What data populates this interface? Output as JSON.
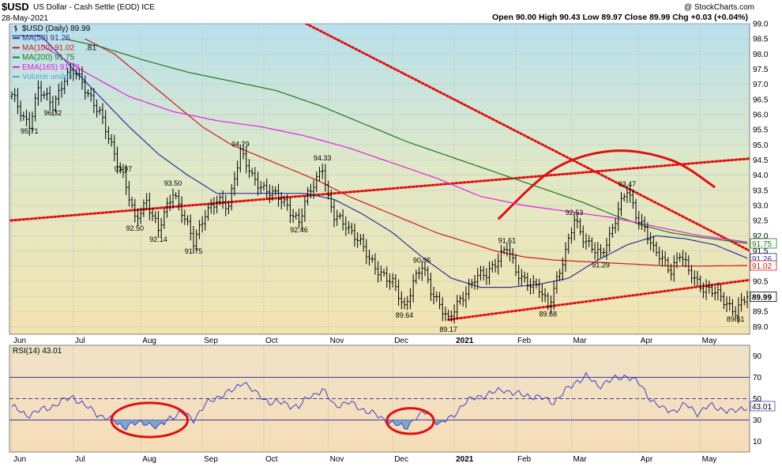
{
  "header": {
    "ticker": "$USD",
    "name": "US Dollar - Cash Settle (EOD) ICE",
    "date": "28-May-2021",
    "copyright": "@ StockCharts.com",
    "ohlc": "Open 90.00  High 90.43  Low 89.97  Close 89.99  Chg +0.03 (+0.04%)"
  },
  "legend": [
    {
      "text": "$USD (Daily) 89.99",
      "color": "#000000"
    },
    {
      "text": "MA(50) 91.26",
      "color": "#2b2f9e"
    },
    {
      "text": "MA(100) 91.02",
      "color": "#d01818"
    },
    {
      "text": "MA(200) 91.75",
      "color": "#1a7a1a"
    },
    {
      "text": "EMA(165) 91.79",
      "color": "#e020e0"
    },
    {
      "text": "Volume undefi",
      "color": "#5aa0d0"
    }
  ],
  "legend_extra": ".81",
  "colors": {
    "price": "#000000",
    "ma50": "#2b2f9e",
    "ma100": "#d01818",
    "ma200": "#1a7a1a",
    "ema165": "#e020e0",
    "trend": "#e01010",
    "rsi": "#4040c8",
    "rsi_fill": "#7aa8c8"
  },
  "chart_data": [
    {
      "type": "line",
      "title": "$USD (Daily)",
      "ylim": [
        88.75,
        99.0
      ],
      "yticks": [
        89.0,
        89.5,
        90.0,
        90.5,
        91.0,
        91.5,
        92.0,
        92.5,
        93.0,
        93.5,
        94.0,
        94.5,
        95.0,
        95.5,
        96.0,
        96.5,
        97.0,
        97.5,
        98.0,
        98.5,
        99.0
      ],
      "ytick_labels": [
        "89.0",
        "89.5",
        "90.0",
        "90.5",
        "91.0",
        "91.5",
        "92.0",
        "92.5",
        "93.0",
        "93.5",
        "94.0",
        "94.5",
        "95.0",
        "95.5",
        "96.0",
        "96.5",
        "97.0",
        "97.5",
        "98.0",
        "98.5",
        "99.0"
      ],
      "x_labels": [
        "Jun",
        "Jul",
        "Aug",
        "Sep",
        "Oct",
        "Nov",
        "Dec",
        "2021",
        "Feb",
        "Mar",
        "Apr",
        "May"
      ],
      "x_label_pos": [
        0,
        21,
        44,
        65,
        86,
        108,
        130,
        151,
        172,
        191,
        214,
        235
      ],
      "n_days": 252,
      "last_value_labels": [
        {
          "text": "91.75",
          "value": 91.75,
          "color": "#1a7a1a"
        },
        {
          "text": "91.26",
          "value": 91.26,
          "color": "#2b2f9e"
        },
        {
          "text": "91.02",
          "value": 91.02,
          "color": "#d01818"
        },
        {
          "text": "89.99",
          "value": 89.99,
          "color": "#000000"
        }
      ],
      "anchors": [
        [
          0,
          96.6
        ],
        [
          4,
          95.9
        ],
        [
          6,
          95.71
        ],
        [
          9,
          96.8
        ],
        [
          14,
          96.32
        ],
        [
          18,
          97.2
        ],
        [
          21,
          97.4
        ],
        [
          24,
          97.1
        ],
        [
          30,
          96.0
        ],
        [
          34,
          95.0
        ],
        [
          38,
          93.97
        ],
        [
          42,
          92.5
        ],
        [
          46,
          93.2
        ],
        [
          50,
          92.14
        ],
        [
          55,
          93.5
        ],
        [
          58,
          92.8
        ],
        [
          62,
          91.75
        ],
        [
          66,
          92.8
        ],
        [
          70,
          93.1
        ],
        [
          74,
          93.0
        ],
        [
          76,
          94.0
        ],
        [
          78,
          94.79
        ],
        [
          82,
          93.9
        ],
        [
          86,
          93.6
        ],
        [
          90,
          93.3
        ],
        [
          94,
          93.0
        ],
        [
          98,
          92.46
        ],
        [
          101,
          93.3
        ],
        [
          104,
          93.9
        ],
        [
          106,
          94.33
        ],
        [
          108,
          93.2
        ],
        [
          110,
          92.6
        ],
        [
          114,
          92.4
        ],
        [
          118,
          91.9
        ],
        [
          122,
          91.2
        ],
        [
          126,
          90.8
        ],
        [
          130,
          90.4
        ],
        [
          134,
          89.64
        ],
        [
          137,
          90.5
        ],
        [
          140,
          90.95
        ],
        [
          143,
          90.2
        ],
        [
          146,
          89.8
        ],
        [
          149,
          89.17
        ],
        [
          152,
          89.7
        ],
        [
          155,
          90.2
        ],
        [
          158,
          90.6
        ],
        [
          162,
          90.7
        ],
        [
          166,
          91.3
        ],
        [
          169,
          91.61
        ],
        [
          172,
          90.8
        ],
        [
          176,
          90.5
        ],
        [
          180,
          90.2
        ],
        [
          183,
          89.68
        ],
        [
          186,
          90.6
        ],
        [
          189,
          91.4
        ],
        [
          192,
          92.53
        ],
        [
          195,
          92.0
        ],
        [
          198,
          91.6
        ],
        [
          201,
          91.29
        ],
        [
          204,
          92.0
        ],
        [
          207,
          92.9
        ],
        [
          210,
          93.47
        ],
        [
          213,
          92.7
        ],
        [
          216,
          92.3
        ],
        [
          219,
          91.5
        ],
        [
          222,
          91.2
        ],
        [
          225,
          90.9
        ],
        [
          228,
          91.4
        ],
        [
          231,
          90.8
        ],
        [
          234,
          90.5
        ],
        [
          236,
          90.3
        ],
        [
          240,
          90.1
        ],
        [
          244,
          89.8
        ],
        [
          247,
          89.51
        ],
        [
          250,
          89.85
        ],
        [
          251,
          89.99
        ]
      ],
      "annotations": [
        {
          "text": "95.71",
          "day": 6,
          "value": 95.71,
          "pos": "below"
        },
        {
          "text": "96.32",
          "day": 14,
          "value": 96.32,
          "pos": "below"
        },
        {
          "text": "93.97",
          "day": 38,
          "value": 93.97,
          "pos": "above"
        },
        {
          "text": "92.50",
          "day": 42,
          "value": 92.5,
          "pos": "below"
        },
        {
          "text": "92.14",
          "day": 50,
          "value": 92.14,
          "pos": "below"
        },
        {
          "text": "93.50",
          "day": 55,
          "value": 93.5,
          "pos": "above"
        },
        {
          "text": "91.75",
          "day": 62,
          "value": 91.75,
          "pos": "below"
        },
        {
          "text": "94.79",
          "day": 78,
          "value": 94.79,
          "pos": "above"
        },
        {
          "text": "92.46",
          "day": 98,
          "value": 92.46,
          "pos": "below"
        },
        {
          "text": "94.33",
          "day": 106,
          "value": 94.33,
          "pos": "above"
        },
        {
          "text": "90.95",
          "day": 140,
          "value": 90.95,
          "pos": "above"
        },
        {
          "text": "89.64",
          "day": 134,
          "value": 89.64,
          "pos": "below"
        },
        {
          "text": "89.17",
          "day": 149,
          "value": 89.17,
          "pos": "below"
        },
        {
          "text": "91.61",
          "day": 169,
          "value": 91.61,
          "pos": "above"
        },
        {
          "text": "89.68",
          "day": 183,
          "value": 89.68,
          "pos": "below"
        },
        {
          "text": "92.53",
          "day": 192,
          "value": 92.53,
          "pos": "above"
        },
        {
          "text": "91.29",
          "day": 201,
          "value": 91.29,
          "pos": "below"
        },
        {
          "text": "93.47",
          "day": 210,
          "value": 93.47,
          "pos": "above"
        },
        {
          "text": "89.51",
          "day": 247,
          "value": 89.51,
          "pos": "below"
        }
      ],
      "moving_averages": [
        {
          "name": "MA(50)",
          "color": "#2b2f9e",
          "points": [
            [
              0,
              98.6
            ],
            [
              10,
              98.6
            ],
            [
              20,
              97.6
            ],
            [
              30,
              96.6
            ],
            [
              40,
              95.6
            ],
            [
              50,
              94.7
            ],
            [
              60,
              94.0
            ],
            [
              70,
              93.4
            ],
            [
              80,
              93.4
            ],
            [
              90,
              93.4
            ],
            [
              100,
              93.4
            ],
            [
              110,
              93.2
            ],
            [
              120,
              92.7
            ],
            [
              130,
              92.1
            ],
            [
              140,
              91.3
            ],
            [
              150,
              90.6
            ],
            [
              160,
              90.3
            ],
            [
              170,
              90.3
            ],
            [
              180,
              90.4
            ],
            [
              190,
              90.6
            ],
            [
              200,
              91.2
            ],
            [
              210,
              91.7
            ],
            [
              220,
              92.0
            ],
            [
              230,
              91.9
            ],
            [
              240,
              91.7
            ],
            [
              251,
              91.26
            ]
          ]
        },
        {
          "name": "MA(100)",
          "color": "#d01818",
          "points": [
            [
              25,
              98.5
            ],
            [
              35,
              98.0
            ],
            [
              45,
              97.2
            ],
            [
              55,
              96.4
            ],
            [
              65,
              95.6
            ],
            [
              75,
              95.0
            ],
            [
              85,
              94.6
            ],
            [
              95,
              94.2
            ],
            [
              105,
              93.8
            ],
            [
              115,
              93.3
            ],
            [
              125,
              92.9
            ],
            [
              135,
              92.5
            ],
            [
              145,
              92.1
            ],
            [
              155,
              91.8
            ],
            [
              165,
              91.5
            ],
            [
              175,
              91.3
            ],
            [
              185,
              91.2
            ],
            [
              195,
              91.15
            ],
            [
              205,
              91.1
            ],
            [
              215,
              91.05
            ],
            [
              225,
              91.0
            ],
            [
              235,
              91.0
            ],
            [
              251,
              91.02
            ]
          ]
        },
        {
          "name": "MA(200)",
          "color": "#1a7a1a",
          "points": [
            [
              18,
              98.5
            ],
            [
              30,
              98.25
            ],
            [
              45,
              97.8
            ],
            [
              60,
              97.4
            ],
            [
              75,
              97.1
            ],
            [
              90,
              96.8
            ],
            [
              105,
              96.3
            ],
            [
              120,
              95.7
            ],
            [
              135,
              95.1
            ],
            [
              150,
              94.6
            ],
            [
              165,
              94.1
            ],
            [
              180,
              93.6
            ],
            [
              195,
              93.1
            ],
            [
              205,
              92.7
            ],
            [
              215,
              92.35
            ],
            [
              225,
              92.1
            ],
            [
              235,
              91.95
            ],
            [
              251,
              91.75
            ]
          ]
        },
        {
          "name": "EMA(165)",
          "color": "#e020e0",
          "points": [
            [
              10,
              98.3
            ],
            [
              25,
              97.4
            ],
            [
              40,
              96.6
            ],
            [
              55,
              96.1
            ],
            [
              70,
              95.8
            ],
            [
              85,
              95.6
            ],
            [
              100,
              95.3
            ],
            [
              115,
              94.9
            ],
            [
              130,
              94.4
            ],
            [
              145,
              93.9
            ],
            [
              160,
              93.3
            ],
            [
              175,
              93.0
            ],
            [
              190,
              92.8
            ],
            [
              205,
              92.6
            ],
            [
              215,
              92.4
            ],
            [
              225,
              92.2
            ],
            [
              235,
              92.0
            ],
            [
              251,
              91.79
            ]
          ]
        }
      ],
      "trendlines": [
        {
          "style": "dotted",
          "points": [
            [
              -11,
              92.42
            ],
            [
              252,
              94.55
            ]
          ]
        },
        {
          "style": "dotted",
          "points": [
            [
              50,
              101.5
            ],
            [
              258,
              91.2
            ]
          ]
        },
        {
          "style": "dotted",
          "points": [
            [
              149,
              89.23
            ],
            [
              258,
              90.62
            ]
          ]
        }
      ],
      "arc": {
        "points": [
          [
            166,
            92.55
          ],
          [
            185,
            94.2
          ],
          [
            205,
            94.8
          ],
          [
            225,
            94.5
          ],
          [
            240,
            93.6
          ]
        ]
      }
    },
    {
      "type": "line",
      "title": "RSI(14) 43.01",
      "ylim": [
        0,
        100
      ],
      "yticks": [
        10,
        30,
        50,
        70,
        90
      ],
      "ytick_labels": [
        "10",
        "30",
        "50",
        "70",
        "90"
      ],
      "reference_lines": [
        70,
        50,
        30
      ],
      "last_value_label": {
        "text": "43.01",
        "value": 43.01
      },
      "anchors": [
        [
          0,
          42
        ],
        [
          5,
          35
        ],
        [
          8,
          37
        ],
        [
          12,
          41
        ],
        [
          17,
          47
        ],
        [
          21,
          52
        ],
        [
          25,
          43
        ],
        [
          29,
          36
        ],
        [
          34,
          30
        ],
        [
          38,
          24
        ],
        [
          42,
          26
        ],
        [
          46,
          28
        ],
        [
          50,
          22
        ],
        [
          54,
          33
        ],
        [
          58,
          36
        ],
        [
          62,
          31
        ],
        [
          66,
          44
        ],
        [
          71,
          53
        ],
        [
          76,
          58
        ],
        [
          79,
          67
        ],
        [
          83,
          55
        ],
        [
          88,
          47
        ],
        [
          94,
          45
        ],
        [
          98,
          42
        ],
        [
          102,
          53
        ],
        [
          106,
          58
        ],
        [
          110,
          44
        ],
        [
          115,
          46
        ],
        [
          120,
          40
        ],
        [
          126,
          32
        ],
        [
          130,
          27
        ],
        [
          134,
          22
        ],
        [
          138,
          33
        ],
        [
          142,
          37
        ],
        [
          146,
          26
        ],
        [
          150,
          32
        ],
        [
          154,
          45
        ],
        [
          159,
          52
        ],
        [
          164,
          55
        ],
        [
          168,
          59
        ],
        [
          172,
          54
        ],
        [
          177,
          53
        ],
        [
          181,
          50
        ],
        [
          185,
          47
        ],
        [
          189,
          57
        ],
        [
          193,
          67
        ],
        [
          196,
          71
        ],
        [
          200,
          62
        ],
        [
          203,
          66
        ],
        [
          207,
          69
        ],
        [
          210,
          72
        ],
        [
          214,
          64
        ],
        [
          218,
          50
        ],
        [
          222,
          40
        ],
        [
          226,
          39
        ],
        [
          230,
          44
        ],
        [
          234,
          37
        ],
        [
          238,
          43
        ],
        [
          242,
          41
        ],
        [
          246,
          37
        ],
        [
          251,
          43.01
        ]
      ],
      "annotations": [
        {
          "shape": "ellipse",
          "days": [
            34,
            60
          ],
          "values": [
            14,
            46
          ]
        },
        {
          "shape": "ellipse",
          "days": [
            128,
            144
          ],
          "values": [
            17,
            41
          ]
        }
      ]
    }
  ]
}
